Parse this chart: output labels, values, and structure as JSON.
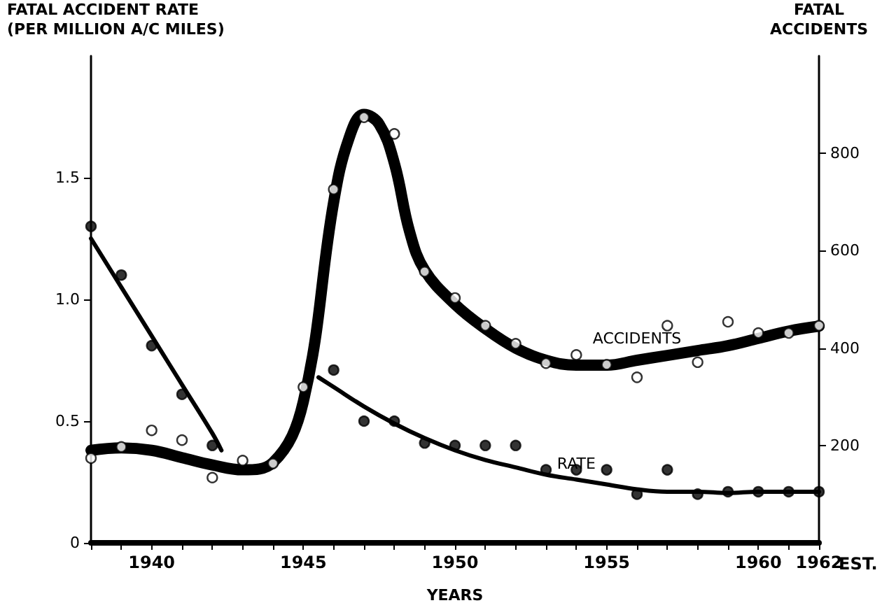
{
  "chart_data": {
    "type": "scatter",
    "ylabel": "FATAL ACCIDENT RATE\n(PER MILLION A/C MILES)",
    "y2label": "FATAL\nACCIDENTS",
    "xlabel": "YEARS",
    "annotations": [
      "EST."
    ],
    "xlim": [
      1938,
      1962
    ],
    "xticks": [
      {
        "value": 1938,
        "label": null
      },
      {
        "value": 1939,
        "label": null
      },
      1940,
      {
        "value": 1941,
        "label": null
      },
      {
        "value": 1942,
        "label": null
      },
      {
        "value": 1943,
        "label": null
      },
      {
        "value": 1944,
        "label": null
      },
      1945,
      {
        "value": 1946,
        "label": null
      },
      {
        "value": 1947,
        "label": null
      },
      {
        "value": 1948,
        "label": null
      },
      {
        "value": 1949,
        "label": null
      },
      1950,
      {
        "value": 1951,
        "label": null
      },
      {
        "value": 1952,
        "label": null
      },
      {
        "value": 1953,
        "label": null
      },
      {
        "value": 1954,
        "label": null
      },
      1955,
      {
        "value": 1956,
        "label": null
      },
      {
        "value": 1957,
        "label": null
      },
      {
        "value": 1958,
        "label": null
      },
      {
        "value": 1959,
        "label": null
      },
      1960,
      {
        "value": 1961,
        "label": null
      },
      1962
    ],
    "ylim": [
      0,
      2.0
    ],
    "yticks": [
      0,
      0.5,
      {
        "value": 1.0,
        "label": "1.0"
      },
      1.5
    ],
    "y2lim": [
      0,
      1000
    ],
    "y2ticks": [
      200,
      400,
      600,
      800
    ],
    "grid": false,
    "legend": false,
    "series": [
      {
        "marker": "circle",
        "color": "#000000",
        "x": [
          1938,
          1939,
          1940,
          1941,
          1942,
          1946,
          1947,
          1948,
          1949,
          1950,
          1951,
          1952,
          1953,
          1954,
          1955,
          1956,
          1957,
          1958,
          1959,
          1960,
          1961,
          1962
        ],
        "values": [
          1.3,
          1.1,
          0.81,
          0.61,
          0.4,
          0.71,
          0.5,
          0.5,
          0.41,
          0.4,
          0.4,
          0.4,
          0.3,
          0.3,
          0.3,
          0.2,
          0.3,
          0.2,
          0.21,
          0.21,
          0.21,
          0.21
        ]
      },
      {
        "marker": "circle",
        "color": "#ffffff",
        "axis": "y2",
        "x": [
          1938,
          1939,
          1940,
          1941,
          1942,
          1943,
          1944,
          1945,
          1946,
          1947,
          1948,
          1949,
          1950,
          1951,
          1952,
          1953,
          1954,
          1955,
          1956,
          1957,
          1958,
          1959,
          1960,
          1961,
          1962
        ],
        "values": [
          174,
          197,
          231,
          211,
          134,
          169,
          163,
          320,
          726,
          874,
          840,
          557,
          503,
          446,
          409,
          369,
          386,
          366,
          340,
          446,
          371,
          454,
          431,
          431,
          446
        ]
      },
      {
        "type": "line",
        "marker": "none",
        "color": "#000000",
        "x": [
          1938,
          1939,
          1940,
          1941,
          1942,
          1942.3
        ],
        "values": [
          1.25,
          1.05,
          0.85,
          0.65,
          0.45,
          0.38
        ]
      },
      {
        "type": "line",
        "name": "RATE",
        "marker": "none",
        "color": "#000000",
        "x": [
          1945.5,
          1946,
          1947,
          1948,
          1949,
          1950,
          1951,
          1952,
          1953,
          1954,
          1955,
          1956,
          1957,
          1958,
          1959,
          1960,
          1961,
          1962
        ],
        "values": [
          0.68,
          0.64,
          0.56,
          0.49,
          0.43,
          0.38,
          0.34,
          0.31,
          0.28,
          0.26,
          0.24,
          0.22,
          0.21,
          0.21,
          0.205,
          0.21,
          0.21,
          0.21
        ]
      },
      {
        "type": "line",
        "name": "ACCIDENTS",
        "marker": "none",
        "color": "#000000",
        "axis": "y2",
        "x": [
          1938,
          1939,
          1940,
          1941,
          1942,
          1943,
          1944,
          1945,
          1946,
          1946.5,
          1947,
          1947.5,
          1948,
          1948.5,
          1949,
          1950,
          1951,
          1952,
          1953,
          1954,
          1955,
          1956,
          1957,
          1958,
          1959,
          1960,
          1961,
          1962
        ],
        "values": [
          190,
          195,
          190,
          175,
          160,
          150,
          165,
          290,
          700,
          830,
          880,
          860,
          780,
          640,
          560,
          490,
          440,
          400,
          375,
          365,
          365,
          375,
          385,
          395,
          405,
          420,
          435,
          445
        ]
      }
    ]
  }
}
